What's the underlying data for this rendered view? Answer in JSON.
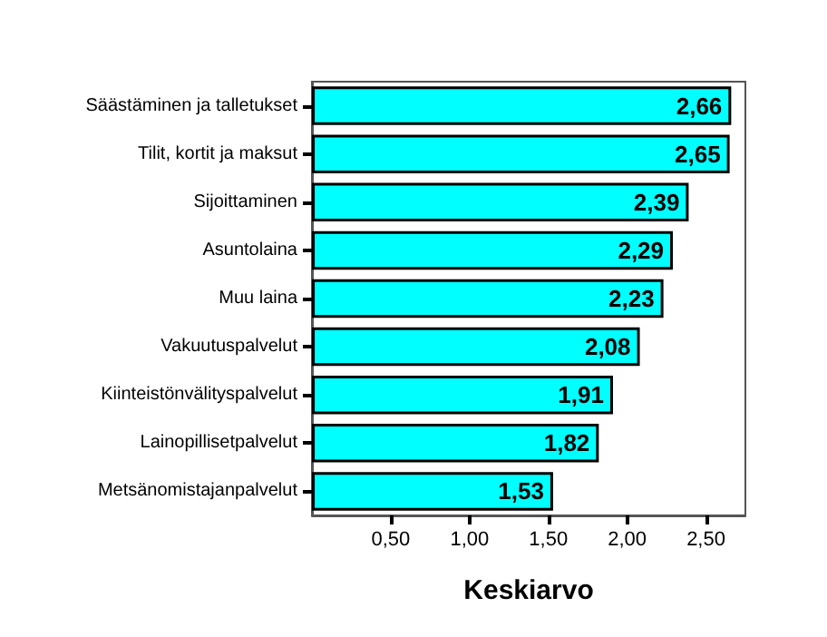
{
  "chart_data": {
    "type": "bar",
    "orientation": "horizontal",
    "xlabel": "Keskiarvo",
    "categories": [
      "Säästäminen ja talletukset",
      "Tilit, kortit ja maksut",
      "Sijoittaminen",
      "Asuntolaina",
      "Muu laina",
      "Vakuutuspalvelut",
      "Kiinteistönvälityspalvelut",
      "Lainopillisetpalvelut",
      "Metsänomistajanpalvelut"
    ],
    "values": [
      2.66,
      2.65,
      2.39,
      2.29,
      2.23,
      2.08,
      1.91,
      1.82,
      1.53
    ],
    "value_labels": [
      "2,66",
      "2,65",
      "2,39",
      "2,29",
      "2,23",
      "2,08",
      "1,91",
      "1,82",
      "1,53"
    ],
    "color": "#00ffff",
    "xlim": [
      0,
      2.75
    ],
    "xticks": [
      {
        "value": 0.5,
        "label": "0,50"
      },
      {
        "value": 1,
        "label": "1,00"
      },
      {
        "value": 1.5,
        "label": "1,50"
      },
      {
        "value": 2,
        "label": "2,00"
      },
      {
        "value": 2.5,
        "label": "2,50"
      }
    ],
    "grid": false
  }
}
